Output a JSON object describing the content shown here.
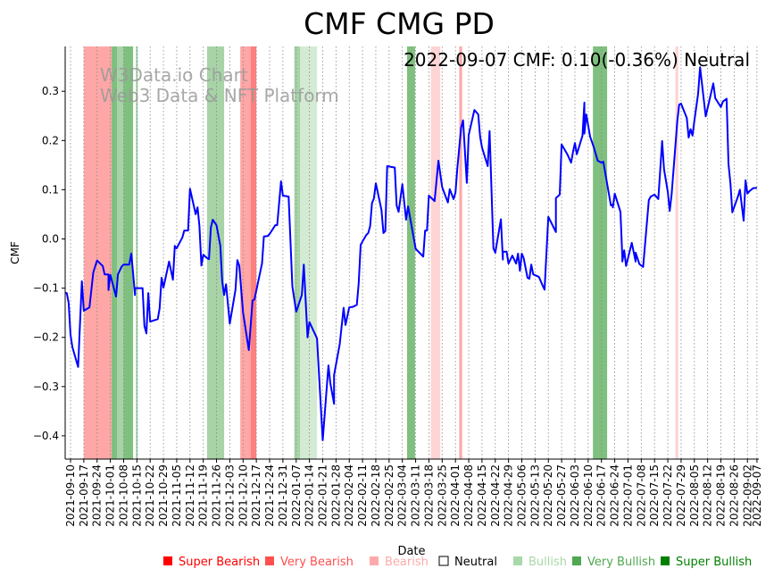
{
  "chart_data": {
    "type": "line",
    "title": "CMF CMG PD",
    "annotation": "2022-09-07 CMF: 0.10(-0.36%) Neutral",
    "watermark": [
      "W3Data.io Chart",
      "Web3 Data & NFT Platform"
    ],
    "xlabel": "Date",
    "ylabel": "CMF",
    "x_unit": "days since 2021-09-10",
    "start_date": "2021-09-10",
    "ylim": [
      -0.445,
      0.395
    ],
    "yticks": [
      0.3,
      0.2,
      0.1,
      0.0,
      -0.1,
      -0.2,
      -0.3,
      -0.4
    ],
    "ytick_labels": [
      "0.3",
      "0.2",
      "0.1",
      "0.0",
      "−0.1",
      "−0.2",
      "−0.3",
      "−0.4"
    ],
    "xticks": [
      0,
      7,
      14,
      21,
      28,
      35,
      42,
      49,
      56,
      63,
      70,
      77,
      84,
      91,
      98,
      105,
      112,
      119,
      126,
      133,
      140,
      147,
      154,
      161,
      168,
      175,
      182,
      189,
      196,
      203,
      210,
      217,
      224,
      231,
      238,
      245,
      252,
      259,
      266,
      273,
      280,
      287,
      294,
      301,
      308,
      315,
      322,
      329,
      336,
      343,
      350,
      357,
      362
    ],
    "xtick_labels": [
      "2021-09-10",
      "2021-09-17",
      "2021-09-24",
      "2021-10-01",
      "2021-10-08",
      "2021-10-15",
      "2021-10-22",
      "2021-10-29",
      "2021-11-05",
      "2021-11-12",
      "2021-11-19",
      "2021-11-26",
      "2021-12-03",
      "2021-12-10",
      "2021-12-17",
      "2021-12-24",
      "2021-12-31",
      "2022-01-07",
      "2022-01-14",
      "2022-01-21",
      "2022-01-28",
      "2022-02-04",
      "2022-02-11",
      "2022-02-18",
      "2022-02-25",
      "2022-03-04",
      "2022-03-11",
      "2022-03-18",
      "2022-03-25",
      "2022-04-01",
      "2022-04-08",
      "2022-04-15",
      "2022-04-22",
      "2022-04-29",
      "2022-05-06",
      "2022-05-13",
      "2022-05-20",
      "2022-05-27",
      "2022-06-03",
      "2022-06-10",
      "2022-06-17",
      "2022-06-24",
      "2022-07-01",
      "2022-07-08",
      "2022-07-15",
      "2022-07-22",
      "2022-07-29",
      "2022-08-05",
      "2022-08-12",
      "2022-08-19",
      "2022-08-26",
      "2022-09-02",
      "2022-09-07"
    ],
    "grid": "vertical dotted",
    "series": [
      {
        "name": "CMF",
        "color": "#0000ff",
        "points": [
          [
            -3,
            -0.11
          ],
          [
            -2,
            -0.11
          ],
          [
            -1,
            -0.13
          ],
          [
            0,
            -0.195
          ],
          [
            1,
            -0.22
          ],
          [
            4,
            -0.26
          ],
          [
            6,
            -0.086
          ],
          [
            7,
            -0.146
          ],
          [
            10,
            -0.139
          ],
          [
            12,
            -0.068
          ],
          [
            14,
            -0.044
          ],
          [
            17,
            -0.055
          ],
          [
            18,
            -0.072
          ],
          [
            20,
            -0.072
          ],
          [
            20,
            -0.104
          ],
          [
            21,
            -0.073
          ],
          [
            24,
            -0.117
          ],
          [
            25,
            -0.072
          ],
          [
            27,
            -0.056
          ],
          [
            28,
            -0.052
          ],
          [
            31,
            -0.052
          ],
          [
            32,
            -0.03
          ],
          [
            33,
            -0.07
          ],
          [
            34,
            -0.114
          ],
          [
            34,
            -0.1
          ],
          [
            38,
            -0.1
          ],
          [
            39,
            -0.177
          ],
          [
            40,
            -0.192
          ],
          [
            41,
            -0.11
          ],
          [
            42,
            -0.168
          ],
          [
            46,
            -0.163
          ],
          [
            47,
            -0.141
          ],
          [
            48,
            -0.079
          ],
          [
            49,
            -0.099
          ],
          [
            52,
            -0.046
          ],
          [
            54,
            -0.083
          ],
          [
            55,
            -0.014
          ],
          [
            56,
            -0.019
          ],
          [
            59,
            0.003
          ],
          [
            60,
            0.017
          ],
          [
            62,
            0.017
          ],
          [
            63,
            0.102
          ],
          [
            66,
            0.05
          ],
          [
            67,
            0.064
          ],
          [
            68,
            0.026
          ],
          [
            69,
            -0.054
          ],
          [
            70,
            -0.032
          ],
          [
            72,
            -0.039
          ],
          [
            73,
            -0.041
          ],
          [
            74,
            0.023
          ],
          [
            75,
            0.039
          ],
          [
            77,
            0.028
          ],
          [
            79,
            -0.014
          ],
          [
            80,
            -0.086
          ],
          [
            81,
            -0.114
          ],
          [
            82,
            -0.092
          ],
          [
            84,
            -0.172
          ],
          [
            87,
            -0.103
          ],
          [
            88,
            -0.043
          ],
          [
            89,
            -0.054
          ],
          [
            91,
            -0.15
          ],
          [
            94,
            -0.226
          ],
          [
            96,
            -0.125
          ],
          [
            97,
            -0.123
          ],
          [
            101,
            -0.05
          ],
          [
            102,
            0.005
          ],
          [
            104,
            0.006
          ],
          [
            105,
            0.01
          ],
          [
            108,
            0.028
          ],
          [
            109,
            0.028
          ],
          [
            111,
            0.117
          ],
          [
            112,
            0.088
          ],
          [
            115,
            0.086
          ],
          [
            117,
            -0.097
          ],
          [
            118,
            -0.122
          ],
          [
            119,
            -0.148
          ],
          [
            122,
            -0.114
          ],
          [
            123,
            -0.052
          ],
          [
            125,
            -0.2
          ],
          [
            126,
            -0.169
          ],
          [
            130,
            -0.202
          ],
          [
            133,
            -0.409
          ],
          [
            136,
            -0.257
          ],
          [
            137,
            -0.293
          ],
          [
            139,
            -0.335
          ],
          [
            139,
            -0.277
          ],
          [
            142,
            -0.213
          ],
          [
            144,
            -0.14
          ],
          [
            145,
            -0.175
          ],
          [
            147,
            -0.139
          ],
          [
            149,
            -0.138
          ],
          [
            151,
            -0.134
          ],
          [
            152,
            -0.09
          ],
          [
            153,
            -0.012
          ],
          [
            154,
            -0.005
          ],
          [
            156,
            0.008
          ],
          [
            157,
            0.012
          ],
          [
            158,
            0.026
          ],
          [
            159,
            0.073
          ],
          [
            160,
            0.082
          ],
          [
            161,
            0.113
          ],
          [
            164,
            0.059
          ],
          [
            165,
            0.012
          ],
          [
            166,
            0.016
          ],
          [
            167,
            0.148
          ],
          [
            171,
            0.145
          ],
          [
            172,
            0.068
          ],
          [
            173,
            0.055
          ],
          [
            175,
            0.111
          ],
          [
            177,
            0.039
          ],
          [
            178,
            0.066
          ],
          [
            179,
            0.045
          ],
          [
            182,
            -0.02
          ],
          [
            186,
            -0.036
          ],
          [
            187,
            0.017
          ],
          [
            188,
            0.017
          ],
          [
            189,
            0.088
          ],
          [
            192,
            0.077
          ],
          [
            194,
            0.159
          ],
          [
            196,
            0.105
          ],
          [
            199,
            0.074
          ],
          [
            200,
            0.101
          ],
          [
            202,
            0.081
          ],
          [
            203,
            0.094
          ],
          [
            204,
            0.144
          ],
          [
            206,
            0.226
          ],
          [
            207,
            0.241
          ],
          [
            209,
            0.114
          ],
          [
            210,
            0.211
          ],
          [
            213,
            0.262
          ],
          [
            215,
            0.253
          ],
          [
            216,
            0.208
          ],
          [
            217,
            0.186
          ],
          [
            220,
            0.148
          ],
          [
            221,
            0.219
          ],
          [
            223,
            -0.019
          ],
          [
            224,
            -0.028
          ],
          [
            227,
            0.04
          ],
          [
            228,
            -0.042
          ],
          [
            228,
            -0.026
          ],
          [
            230,
            -0.026
          ],
          [
            231,
            -0.05
          ],
          [
            233,
            -0.034
          ],
          [
            235,
            -0.05
          ],
          [
            236,
            -0.03
          ],
          [
            237,
            -0.065
          ],
          [
            238,
            -0.03
          ],
          [
            239,
            -0.039
          ],
          [
            241,
            -0.079
          ],
          [
            242,
            -0.081
          ],
          [
            243,
            -0.052
          ],
          [
            244,
            -0.072
          ],
          [
            247,
            -0.077
          ],
          [
            249,
            -0.095
          ],
          [
            250,
            -0.103
          ],
          [
            252,
            0.045
          ],
          [
            256,
            0.014
          ],
          [
            256,
            0.083
          ],
          [
            258,
            0.09
          ],
          [
            259,
            0.192
          ],
          [
            262,
            0.172
          ],
          [
            264,
            0.155
          ],
          [
            265,
            0.177
          ],
          [
            266,
            0.195
          ],
          [
            267,
            0.172
          ],
          [
            270,
            0.21
          ],
          [
            271,
            0.277
          ],
          [
            271,
            0.214
          ],
          [
            272,
            0.253
          ],
          [
            274,
            0.208
          ],
          [
            276,
            0.186
          ],
          [
            278,
            0.159
          ],
          [
            280,
            0.155
          ],
          [
            281,
            0.157
          ],
          [
            285,
            0.068
          ],
          [
            286,
            0.07
          ],
          [
            286,
            0.064
          ],
          [
            287,
            0.092
          ],
          [
            290,
            0.055
          ],
          [
            291,
            -0.037
          ],
          [
            291,
            -0.046
          ],
          [
            292,
            -0.023
          ],
          [
            293,
            -0.055
          ],
          [
            296,
            -0.008
          ],
          [
            298,
            -0.046
          ],
          [
            298,
            -0.028
          ],
          [
            300,
            -0.051
          ],
          [
            302,
            -0.057
          ],
          [
            305,
            0.079
          ],
          [
            306,
            0.086
          ],
          [
            308,
            0.09
          ],
          [
            310,
            0.081
          ],
          [
            312,
            0.199
          ],
          [
            313,
            0.142
          ],
          [
            315,
            0.095
          ],
          [
            316,
            0.057
          ],
          [
            317,
            0.09
          ],
          [
            320,
            0.24
          ],
          [
            321,
            0.273
          ],
          [
            322,
            0.275
          ],
          [
            325,
            0.246
          ],
          [
            326,
            0.206
          ],
          [
            327,
            0.223
          ],
          [
            328,
            0.21
          ],
          [
            329,
            0.24
          ],
          [
            331,
            0.295
          ],
          [
            332,
            0.349
          ],
          [
            335,
            0.249
          ],
          [
            339,
            0.316
          ],
          [
            340,
            0.286
          ],
          [
            343,
            0.268
          ],
          [
            344,
            0.279
          ],
          [
            346,
            0.285
          ],
          [
            347,
            0.153
          ],
          [
            348,
            0.113
          ],
          [
            349,
            0.054
          ],
          [
            352,
            0.086
          ],
          [
            353,
            0.1
          ],
          [
            355,
            0.037
          ],
          [
            356,
            0.119
          ],
          [
            357,
            0.092
          ],
          [
            358,
            0.097
          ],
          [
            360,
            0.103
          ],
          [
            362,
            0.104
          ]
        ]
      }
    ],
    "bands": [
      {
        "from": 7,
        "to": 21.7,
        "level": "very_bearish"
      },
      {
        "from": 21.7,
        "to": 24.5,
        "level": "super_bullish"
      },
      {
        "from": 24.5,
        "to": 28,
        "level": "very_bullish"
      },
      {
        "from": 28,
        "to": 33,
        "level": "super_bullish"
      },
      {
        "from": 34.5,
        "to": 35.5,
        "level": "very_bullish"
      },
      {
        "from": 72,
        "to": 81,
        "level": "very_bullish"
      },
      {
        "from": 89.5,
        "to": 95,
        "level": "very_bearish"
      },
      {
        "from": 95,
        "to": 98,
        "level": "super_bearish"
      },
      {
        "from": 118,
        "to": 121,
        "level": "very_bullish"
      },
      {
        "from": 121,
        "to": 130,
        "level": "bullish"
      },
      {
        "from": 177.5,
        "to": 181.7,
        "level": "super_bullish"
      },
      {
        "from": 190,
        "to": 195,
        "level": "bearish"
      },
      {
        "from": 205,
        "to": 206.5,
        "level": "very_bearish"
      },
      {
        "from": 275.5,
        "to": 283,
        "level": "super_bullish"
      },
      {
        "from": 319,
        "to": 320.5,
        "level": "bearish"
      }
    ],
    "legend": {
      "placement": "bottom",
      "items": [
        {
          "key": "super_bearish",
          "label": "Super Bearish",
          "color": "#ff0000"
        },
        {
          "key": "very_bearish",
          "label": "Very Bearish",
          "color": "#ff5050"
        },
        {
          "key": "bearish",
          "label": "Bearish",
          "color": "#ffaaaa"
        },
        {
          "key": "neutral",
          "label": "Neutral",
          "color": "#ffffff"
        },
        {
          "key": "bullish",
          "label": "Bullish",
          "color": "#a8d8a8"
        },
        {
          "key": "very_bullish",
          "label": "Very Bullish",
          "color": "#50a850"
        },
        {
          "key": "super_bullish",
          "label": "Super Bullish",
          "color": "#008000"
        }
      ]
    }
  }
}
